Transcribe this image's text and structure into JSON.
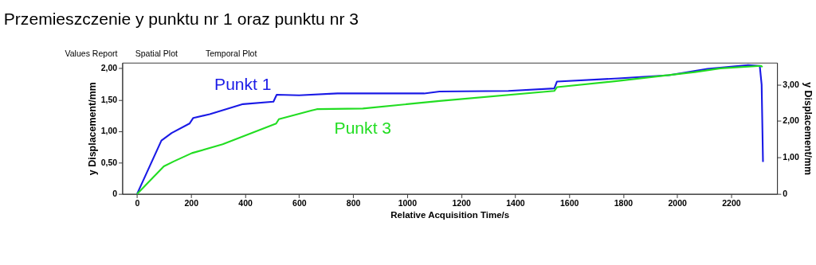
{
  "chart_data": {
    "type": "line",
    "title": "Przemieszczenie y punktu nr 1 oraz punktu nr 3",
    "xlabel": "Relative Acquisition Time/s",
    "ylabel": "y Displacement/mm",
    "y2label": "y Displacement/mm",
    "annotations": [
      "Values Report",
      "Spatial Plot",
      "Temporal Plot"
    ],
    "xlim": [
      -55,
      2370
    ],
    "xticks": [
      0,
      200,
      400,
      600,
      800,
      1000,
      1200,
      1400,
      1600,
      1800,
      2000,
      2200
    ],
    "ylim": [
      0,
      2.09
    ],
    "yticks": [
      {
        "value": 0,
        "label": "0"
      },
      {
        "value": 0.5,
        "label": "0,50"
      },
      {
        "value": 1,
        "label": "1,00"
      },
      {
        "value": 1.5,
        "label": "1,50"
      },
      {
        "value": 2,
        "label": "2,00"
      }
    ],
    "y2lim": [
      0,
      3.6
    ],
    "y2ticks": [
      {
        "value": 0,
        "label": "0"
      },
      {
        "value": 1,
        "label": "1,00"
      },
      {
        "value": 2,
        "label": "2,00"
      },
      {
        "value": 3,
        "label": "3,00"
      }
    ],
    "grid": false,
    "legend": false,
    "marker": "none",
    "line_style": "solid",
    "series": [
      {
        "name": "Punkt 1",
        "color": "#1a1ae6",
        "x": [
          0,
          90,
          128,
          194,
          208,
          269,
          392,
          505,
          517,
          600,
          742,
          1063,
          1120,
          1375,
          1545,
          1555,
          1782,
          1970,
          2112,
          2263,
          2306,
          2313,
          2318
        ],
        "values": [
          0,
          0.85,
          0.97,
          1.12,
          1.21,
          1.27,
          1.43,
          1.47,
          1.58,
          1.57,
          1.6,
          1.6,
          1.63,
          1.64,
          1.68,
          1.79,
          1.84,
          1.89,
          1.99,
          2.05,
          2.04,
          1.74,
          0.51
        ]
      },
      {
        "name": "Punkt 3",
        "color": "#22dd22",
        "x": [
          0,
          99,
          137,
          203,
          317,
          515,
          525,
          647,
          666,
          836,
          1120,
          1545,
          1555,
          1782,
          2065,
          2160,
          2311,
          2316
        ],
        "values": [
          0,
          0.44,
          0.52,
          0.65,
          0.79,
          1.12,
          1.19,
          1.33,
          1.35,
          1.36,
          1.48,
          1.64,
          1.7,
          1.8,
          1.94,
          2.0,
          2.04,
          2.02
        ]
      }
    ]
  }
}
